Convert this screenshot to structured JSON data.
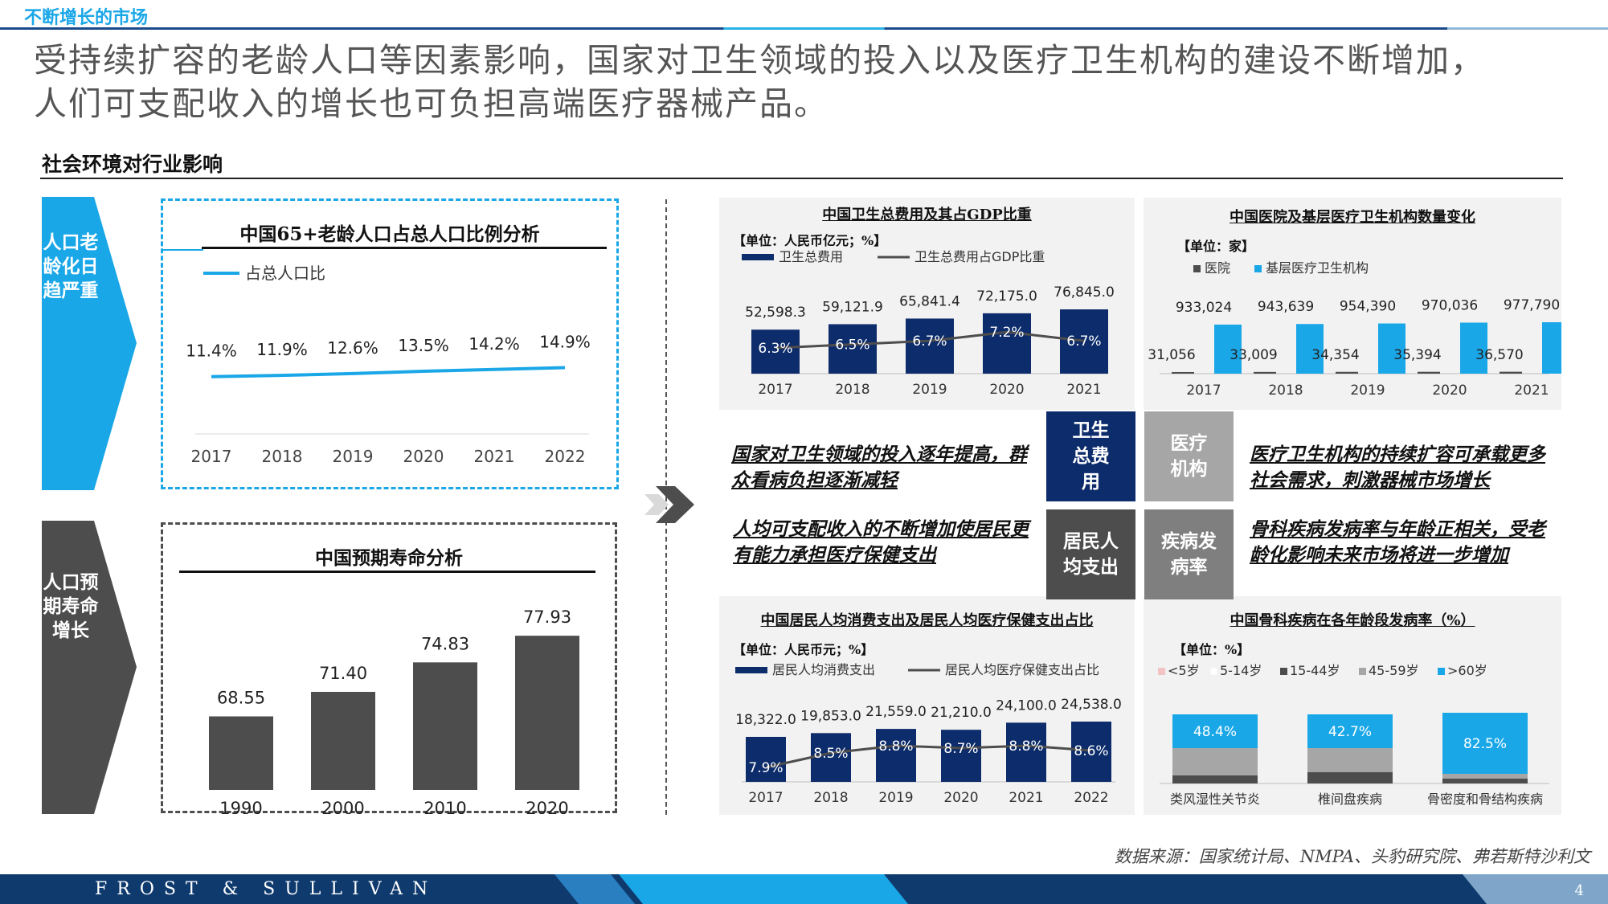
{
  "header": {
    "top_label": "不断增长的市场",
    "headline_line1": "受持续扩容的老龄人口等因素影响，国家对卫生领域的投入以及医疗卫生机构的建设不断增加，",
    "headline_line2": "人们可支配收入的增长也可负担高端医疗器械产品。"
  },
  "section_title": "社会环境对行业影响",
  "chevrons": [
    {
      "text": "人口老龄化日趋严重",
      "color": "#1aa7e8"
    },
    {
      "text": "人口预期寿命增长",
      "color": "#4d4d4d"
    }
  ],
  "colors": {
    "accent_blue": "#1aa7e8",
    "navy": "#0d2c6b",
    "dark_gray": "#4d4d4d",
    "mid_gray": "#7f7f7f"
  },
  "center_boxes": {
    "health_cost": "卫生总费用",
    "institutions": "医疗机构",
    "per_capita": "居民人均支出",
    "disease_rate": "疾病发病率"
  },
  "statements": {
    "top_left": "国家对卫生领域的投入逐年提高，群众看病负担逐渐减轻",
    "top_right": "医疗卫生机构的持续扩容可承载更多社会需求，刺激器械市场增长",
    "bottom_left": "人均可支配收入的不断增加使居民更有能力承担医疗保健支出",
    "bottom_right": "骨科疾病发病率与年龄正相关，受老龄化影响未来市场将进一步增加"
  },
  "source": "数据来源：国家统计局、NMPA、头豹研究院、弗若斯特沙利文",
  "footer": {
    "brand": "FROST & SULLIVAN",
    "page": "4"
  },
  "chart_data": [
    {
      "id": "aging",
      "type": "line",
      "title": "中国65+老龄人口占总人口比例分析",
      "categories": [
        "2017",
        "2018",
        "2019",
        "2020",
        "2021",
        "2022"
      ],
      "series": [
        {
          "name": "占总人口比",
          "values": [
            11.4,
            11.9,
            12.6,
            13.5,
            14.2,
            14.9
          ],
          "labels": [
            "11.4%",
            "11.9%",
            "12.6%",
            "13.5%",
            "14.2%",
            "14.9%"
          ]
        }
      ]
    },
    {
      "id": "life",
      "type": "bar",
      "title": "中国预期寿命分析",
      "categories": [
        "1990",
        "2000",
        "2010",
        "2020"
      ],
      "values": [
        68.55,
        71.4,
        74.83,
        77.93
      ],
      "labels": [
        "68.55",
        "71.40",
        "74.83",
        "77.93"
      ]
    },
    {
      "id": "health",
      "type": "bar",
      "title": "中国卫生总费用及其占GDP比重",
      "unit": "【单位：人民币亿元；%】",
      "categories": [
        "2017",
        "2018",
        "2019",
        "2020",
        "2021"
      ],
      "series": [
        {
          "name": "卫生总费用",
          "values": [
            52598.3,
            59121.9,
            65841.4,
            72175.0,
            76845.0
          ],
          "labels": [
            "52,598.3",
            "59,121.9",
            "65,841.4",
            "72,175.0",
            "76,845.0"
          ]
        },
        {
          "name": "卫生总费用占GDP比重",
          "values": [
            6.3,
            6.5,
            6.7,
            7.2,
            6.7
          ],
          "labels": [
            "6.3%",
            "6.5%",
            "6.7%",
            "7.2%",
            "6.7%"
          ]
        }
      ]
    },
    {
      "id": "inst",
      "type": "bar",
      "title": "中国医院及基层医疗卫生机构数量变化",
      "unit": "【单位：家】",
      "categories": [
        "2017",
        "2018",
        "2019",
        "2020",
        "2021"
      ],
      "series": [
        {
          "name": "医院",
          "values": [
            31056,
            33009,
            34354,
            35394,
            36570
          ],
          "labels": [
            "31,056",
            "33,009",
            "34,354",
            "35,394",
            "36,570"
          ]
        },
        {
          "name": "基层医疗卫生机构",
          "values": [
            933024,
            943639,
            954390,
            970036,
            977790
          ],
          "labels": [
            "933,024",
            "943,639",
            "954,390",
            "970,036",
            "977,790"
          ]
        }
      ]
    },
    {
      "id": "consume",
      "type": "bar",
      "title": "中国居民人均消费支出及居民人均医疗保健支出占比",
      "unit": "【单位：人民币元；%】",
      "categories": [
        "2017",
        "2018",
        "2019",
        "2020",
        "2021",
        "2022"
      ],
      "series": [
        {
          "name": "居民人均消费支出",
          "values": [
            18322.0,
            19853.0,
            21559.0,
            21210.0,
            24100.0,
            24538.0
          ],
          "labels": [
            "18,322.0",
            "19,853.0",
            "21,559.0",
            "21,210.0",
            "24,100.0",
            "24,538.0"
          ]
        },
        {
          "name": "居民人均医疗保健支出占比",
          "values": [
            7.9,
            8.5,
            8.8,
            8.7,
            8.8,
            8.6
          ],
          "labels": [
            "7.9%",
            "8.5%",
            "8.8%",
            "8.7%",
            "8.8%",
            "8.6%"
          ]
        }
      ]
    },
    {
      "id": "ortho",
      "type": "bar",
      "title": "中国骨科疾病在各年龄段发病率（%）",
      "unit": "【单位：%】",
      "categories": [
        "类风湿性关节炎",
        "椎间盘疾病",
        "骨密度和骨结构疾病"
      ],
      "legend": [
        "<5岁",
        "5-14岁",
        "15-44岁",
        "45-59岁",
        ">60岁"
      ],
      "legend_colors": [
        "#f2c4c4",
        "#ffffff",
        "#4d4d4d",
        "#a6a6a6",
        "#1aa7e8"
      ],
      "top_values": [
        48.4,
        42.7,
        82.5
      ],
      "top_labels": [
        "48.4%",
        "42.7%",
        "82.5%"
      ]
    }
  ]
}
